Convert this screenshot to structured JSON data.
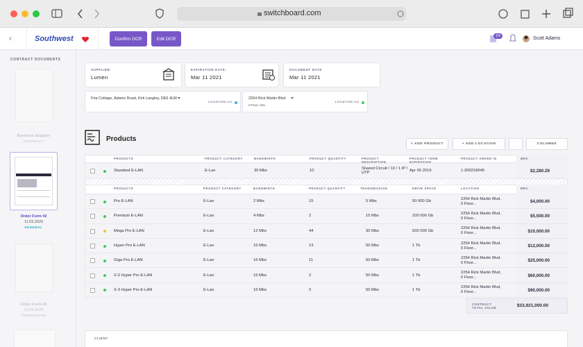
{
  "browser": {
    "url": "switchboard.com"
  },
  "header": {
    "logo": "Southwest",
    "buttons": [
      "Confirm OCR",
      "Edit OCR"
    ],
    "badge": "1/4",
    "user": "Scott Adams"
  },
  "sidebar": {
    "title": "CONTRACT DOCUMENTS",
    "documents": [
      {
        "title": "Business Supplier",
        "tag": "CONTRACT"
      },
      {
        "title": "Order Form #2",
        "date": "11.03.2020",
        "tag": "RENEWAL"
      },
      {
        "title": "Order Form #3",
        "date": "01.05.2020",
        "tag": "TERMINATION"
      }
    ]
  },
  "fields": [
    {
      "label": "SUPPLIER:",
      "value": "Lumen"
    },
    {
      "label": "EXPIRATION DATE:",
      "value": "Mar 11 2021"
    },
    {
      "label": "DOCUMENT DATE",
      "value": "Mar 11 2021"
    }
  ],
  "locations": [
    {
      "address": "Fira Cottage, Adams Road, Kirk Langley, DE6 4LW",
      "tag": "LOCATION 1/2"
    },
    {
      "address": "2254 Rick Martin Blvd",
      "detail": "0 Floor, 23a",
      "tag": "LOCATION 2/2"
    }
  ],
  "products": {
    "title": "Products",
    "actions": [
      "+ ADD PRODUCT",
      "+ ADD LOCATION",
      "COLUMNS"
    ],
    "table1": {
      "columns": [
        "PRODUCTS",
        "PRODUCT CATEGORY",
        "BANDWIDTH",
        "PRODUCT QUANTITY",
        "PRODUCT DESCRIPTION",
        "PRODUCT TERM EXPIRATION",
        "PRODUCT ORDER ID",
        "MRC"
      ],
      "status": [
        "#3ec65a"
      ],
      "rows": [
        [
          "Standard E-LAN",
          "E-Lan",
          "30 Mbs",
          "10",
          "Shared Circuit / 10 / 1 IP / UTP",
          "Apr 05 2019",
          "1-300218645",
          "$2,280.29"
        ]
      ]
    },
    "table2": {
      "columns": [
        "PRODUCTS",
        "PRODUCT CATEGORY",
        "BANDWIDTH",
        "PRODUCT QUANTITY",
        "TRANSMISSION",
        "DRIVE SPACE",
        "LOCATION",
        "MRC"
      ],
      "status": [
        "#3ec65a",
        "#3ec65a",
        "#e8c53a",
        "#3ec65a",
        "#3ec65a",
        "#3ec65a",
        "#3ec65a"
      ],
      "rows": [
        [
          "Pro E-LAN",
          "E-Lan",
          "2 Mbs",
          "15",
          "5 Mbs",
          "50 000 Gb",
          "2254 Rick Martin Blvd, 0 Floor...",
          "$4,000.00"
        ],
        [
          "Premium E-LAN",
          "E-Lan",
          "4 Mbs",
          "2",
          "15 Mbs",
          "100 000 Gb",
          "2254 Rick Martin Blvd, 0 Floor...",
          "$5,500.00"
        ],
        [
          "Mega Pro E-LAN",
          "E-Lan",
          "12 Mbs",
          "44",
          "30 Mbs",
          "500 000 Gb",
          "2254 Rick Martin Blvd, 0 Floor...",
          "$10,000.00"
        ],
        [
          "Hyper Pro E-LAN",
          "E-Lan",
          "16 Mbs",
          "13",
          "50 Mbs",
          "1 Tb",
          "2254 Rick Martin Blvd, 0 Floor...",
          "$12,000.00"
        ],
        [
          "Giga Pro E-LAN",
          "E-Lan",
          "16 Mbs",
          "11",
          "50 Mbs",
          "1 Tb",
          "2254 Rick Martin Blvd, 0 Floor...",
          "$25,000.00"
        ],
        [
          "X-2 Hyper Pro E-LAN",
          "E-Lan",
          "16 Mbs",
          "2",
          "50 Mbs",
          "1 Tb",
          "2254 Rick Martin Blvd, 0 Floor...",
          "$60,000.00"
        ],
        [
          "X-3 Hyper Pro E-LAN",
          "E-Lan",
          "16 Mbs",
          "2",
          "50 Mbs",
          "1 Tb",
          "2254 Rick Martin Blvd, 0 Floor...",
          "$90,000.00"
        ]
      ]
    },
    "total": {
      "label": "CONTRACT TOTAL VALUE",
      "value": "$33,921,000.00"
    }
  },
  "client": {
    "label": "CLIENT"
  }
}
